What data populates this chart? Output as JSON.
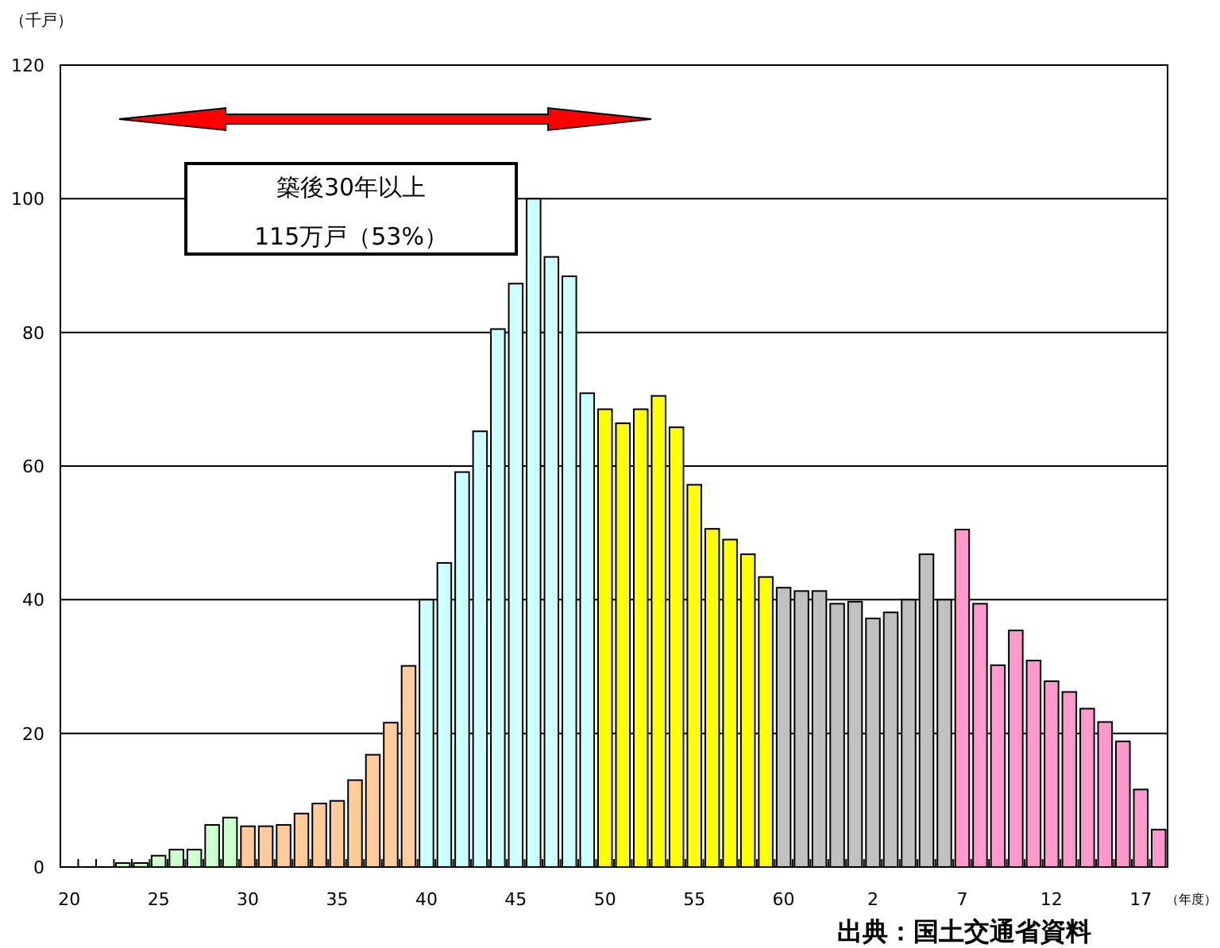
{
  "chart_data": {
    "type": "bar",
    "ylabel": "（千戸）",
    "xlabel": "（年度）",
    "categories": [
      "20",
      null,
      null,
      null,
      null,
      "25",
      null,
      null,
      null,
      null,
      "30",
      null,
      null,
      null,
      null,
      "35",
      null,
      null,
      null,
      null,
      "40",
      null,
      null,
      null,
      null,
      "45",
      null,
      null,
      null,
      null,
      "50",
      null,
      null,
      null,
      null,
      "55",
      null,
      null,
      null,
      null,
      "60",
      null,
      null,
      null,
      null,
      "2",
      null,
      null,
      null,
      null,
      "7",
      null,
      null,
      null,
      null,
      "12",
      null,
      null,
      null,
      null,
      "17",
      null
    ],
    "values": [
      null,
      null,
      null,
      0.6,
      0.6,
      1.7,
      2.6,
      2.6,
      6.3,
      7.4,
      6.1,
      6.1,
      6.3,
      8.0,
      9.5,
      9.9,
      13.0,
      16.8,
      21.6,
      30.1,
      40.0,
      45.5,
      59.1,
      65.2,
      80.5,
      87.3,
      100.0,
      91.3,
      88.4,
      70.9,
      68.5,
      66.4,
      68.5,
      70.5,
      65.8,
      57.2,
      50.6,
      49.0,
      46.8,
      43.4,
      41.8,
      41.3,
      41.3,
      39.4,
      39.7,
      37.2,
      38.1,
      40.0,
      46.8,
      40.0,
      50.5,
      39.4,
      30.2,
      35.4,
      30.9,
      27.8,
      26.2,
      23.7,
      21.7,
      18.8,
      11.6,
      5.6
    ],
    "colors": [
      null,
      null,
      null,
      "#ccffcc",
      "#ccffcc",
      "#ccffcc",
      "#ccffcc",
      "#ccffcc",
      "#ccffcc",
      "#ccffcc",
      "#ffcc99",
      "#ffcc99",
      "#ffcc99",
      "#ffcc99",
      "#ffcc99",
      "#ffcc99",
      "#ffcc99",
      "#ffcc99",
      "#ffcc99",
      "#ffcc99",
      "#ccffff",
      "#ccffff",
      "#ccffff",
      "#ccffff",
      "#ccffff",
      "#ccffff",
      "#ccffff",
      "#ccffff",
      "#ccffff",
      "#ccffff",
      "#ffff00",
      "#ffff00",
      "#ffff00",
      "#ffff00",
      "#ffff00",
      "#ffff00",
      "#ffff00",
      "#ffff00",
      "#ffff00",
      "#ffff00",
      "#c0c0c0",
      "#c0c0c0",
      "#c0c0c0",
      "#c0c0c0",
      "#c0c0c0",
      "#c0c0c0",
      "#c0c0c0",
      "#c0c0c0",
      "#c0c0c0",
      "#c0c0c0",
      "#ff99cc",
      "#ff99cc",
      "#ff99cc",
      "#ff99cc",
      "#ff99cc",
      "#ff99cc",
      "#ff99cc",
      "#ff99cc",
      "#ff99cc",
      "#ff99cc",
      "#ff99cc",
      "#ff99cc"
    ],
    "ylim": [
      0,
      120
    ],
    "yticks": [
      0,
      20,
      40,
      60,
      80,
      100,
      120
    ],
    "grid": "y",
    "annotations": [
      "築後30年以上",
      "115万戸（53%）",
      "出典：国土交通省資料"
    ]
  }
}
